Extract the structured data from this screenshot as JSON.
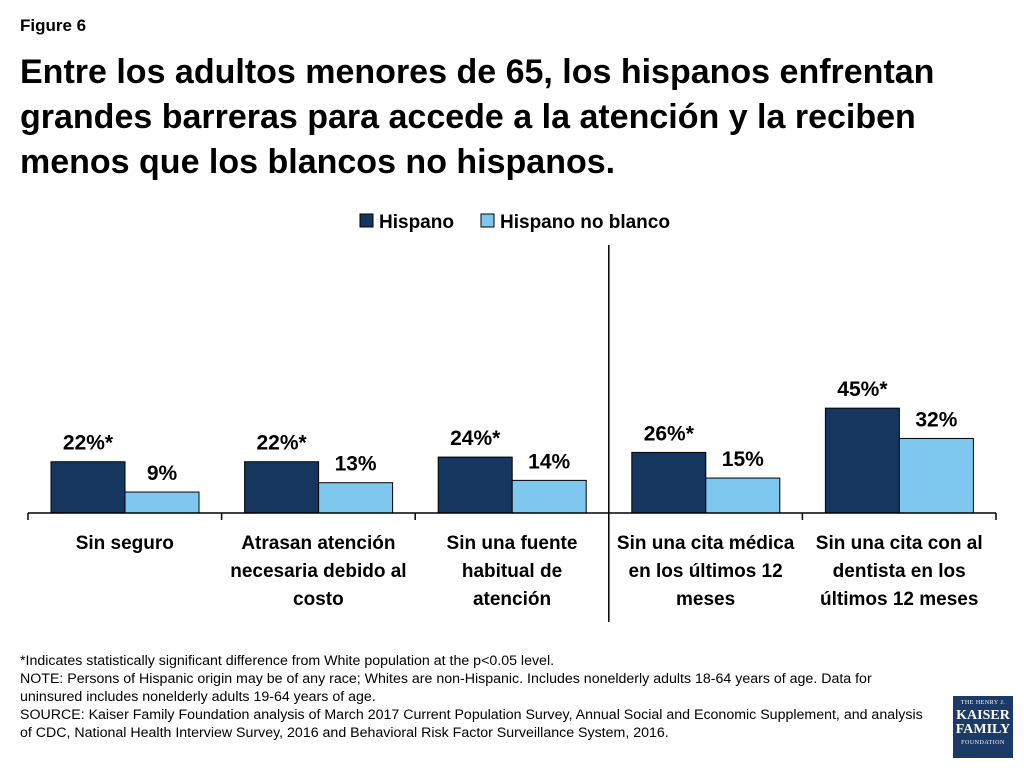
{
  "figure_label": "Figure 6",
  "title": "Entre los adultos menores de 65, los hispanos enfrentan grandes barreras para accede a la atención y la reciben menos que los blancos no hispanos.",
  "colors": {
    "hispano": "#15375f",
    "blanco": "#7ec8ef"
  },
  "chart_data": {
    "type": "bar",
    "title": "Entre los adultos menores de 65, los hispanos enfrentan grandes barreras para accede a la atención y la reciben menos que los blancos no hispanos.",
    "categories": [
      [
        "Sin seguro"
      ],
      [
        "Atrasan atención",
        "necesaria debido al",
        "costo"
      ],
      [
        "Sin una fuente",
        "habitual de",
        "atención"
      ],
      [
        "Sin una cita médica",
        "en los últimos 12",
        "meses"
      ],
      [
        "Sin una cita con  al",
        "dentista en los",
        "últimos 12 meses"
      ]
    ],
    "series": [
      {
        "name": "Hispano",
        "values": [
          22,
          22,
          24,
          26,
          45
        ],
        "labels": [
          "22%*",
          "22%*",
          "24%*",
          "26%*",
          "45%*"
        ]
      },
      {
        "name": "Hispano no blanco",
        "values": [
          9,
          13,
          14,
          15,
          32
        ],
        "labels": [
          "9%",
          "13%",
          "14%",
          "15%",
          "32%"
        ]
      }
    ],
    "ylim": [
      0,
      100
    ],
    "xlabel": "",
    "ylabel": "",
    "legend_position": "top-center",
    "divider_after_category": 3
  },
  "notes": [
    "*Indicates statistically significant difference from White population at the p<0.05 level.",
    "NOTE: Persons of Hispanic origin may be of any race; Whites are non-Hispanic. Includes nonelderly adults 18-64 years of age. Data for uninsured includes nonelderly adults 19-64 years of age.",
    "SOURCE: Kaiser Family Foundation analysis of March 2017 Current Population Survey, Annual Social and Economic Supplement, and analysis of CDC, National Health Interview Survey, 2016 and Behavioral Risk Factor Surveillance System, 2016."
  ],
  "logo": {
    "line1": "THE HENRY J.",
    "line2": "KAISER",
    "line3": "FAMILY",
    "line4": "FOUNDATION"
  }
}
